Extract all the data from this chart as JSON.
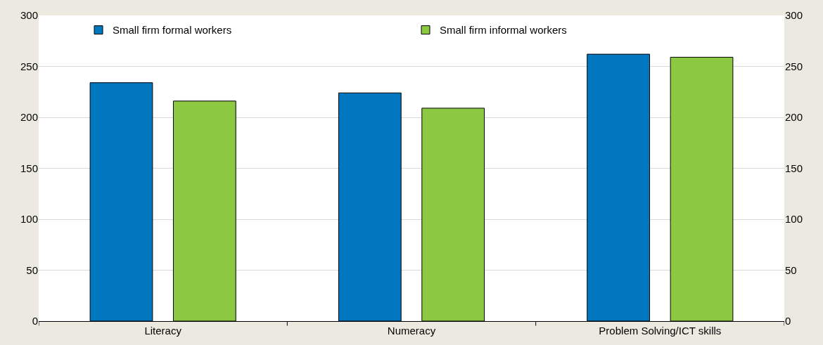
{
  "chart_data": {
    "type": "bar",
    "categories": [
      "Literacy",
      "Numeracy",
      "Problem Solving/ICT skills"
    ],
    "series": [
      {
        "name": "Small firm formal workers",
        "color": "#0077bf",
        "values": [
          234,
          224,
          262
        ]
      },
      {
        "name": "Small firm informal workers",
        "color": "#8cc841",
        "values": [
          216,
          209,
          259
        ]
      }
    ],
    "ylim": [
      0,
      300
    ],
    "yticks": [
      0,
      50,
      100,
      150,
      200,
      250,
      300
    ],
    "y2lim": [
      0,
      300
    ],
    "y2ticks": [
      0,
      50,
      100,
      150,
      200,
      250,
      300
    ],
    "grid": "y",
    "legend": "top"
  }
}
